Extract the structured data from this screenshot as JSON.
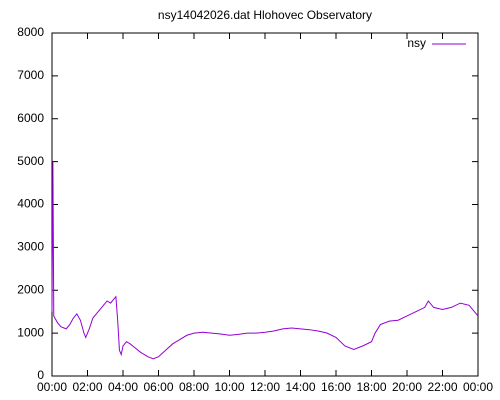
{
  "chart_data": {
    "type": "line",
    "title": "nsy14042026.dat Hlohovec Observatory",
    "x": [
      0.0,
      0.05,
      0.1,
      0.3,
      0.5,
      0.8,
      1.0,
      1.2,
      1.4,
      1.6,
      1.8,
      1.9,
      2.1,
      2.3,
      2.6,
      2.9,
      3.1,
      3.3,
      3.5,
      3.6,
      3.7,
      3.8,
      3.9,
      4.0,
      4.2,
      4.4,
      4.7,
      5.0,
      5.4,
      5.7,
      6.0,
      6.4,
      6.8,
      7.2,
      7.6,
      8.0,
      8.5,
      9.0,
      9.5,
      10.0,
      10.5,
      11.0,
      11.5,
      12.0,
      12.5,
      13.0,
      13.5,
      14.0,
      14.5,
      15.0,
      15.5,
      16.0,
      16.5,
      17.0,
      17.5,
      18.0,
      18.2,
      18.5,
      19.0,
      19.5,
      20.0,
      20.5,
      21.0,
      21.2,
      21.5,
      22.0,
      22.5,
      23.0,
      23.5,
      23.8,
      24.0
    ],
    "series": [
      {
        "name": "nsy",
        "color": "#9400d3",
        "values": [
          1500,
          5000,
          1400,
          1250,
          1150,
          1100,
          1200,
          1350,
          1450,
          1300,
          1000,
          900,
          1100,
          1350,
          1500,
          1650,
          1750,
          1700,
          1800,
          1850,
          1300,
          600,
          500,
          700,
          800,
          750,
          650,
          550,
          450,
          400,
          450,
          600,
          750,
          850,
          950,
          1000,
          1020,
          1000,
          980,
          950,
          970,
          1000,
          1000,
          1020,
          1050,
          1100,
          1120,
          1100,
          1080,
          1050,
          1000,
          900,
          700,
          620,
          700,
          800,
          1000,
          1200,
          1280,
          1300,
          1400,
          1500,
          1600,
          1750,
          1600,
          1550,
          1600,
          1700,
          1650,
          1500,
          1400
        ]
      }
    ],
    "xlim": [
      0,
      24
    ],
    "xticks": [
      {
        "value": 0,
        "label": "00:00"
      },
      {
        "value": 2,
        "label": "02:00"
      },
      {
        "value": 4,
        "label": "04:00"
      },
      {
        "value": 6,
        "label": "06:00"
      },
      {
        "value": 8,
        "label": "08:00"
      },
      {
        "value": 10,
        "label": "10:00"
      },
      {
        "value": 12,
        "label": "12:00"
      },
      {
        "value": 14,
        "label": "14:00"
      },
      {
        "value": 16,
        "label": "16:00"
      },
      {
        "value": 18,
        "label": "18:00"
      },
      {
        "value": 20,
        "label": "20:00"
      },
      {
        "value": 22,
        "label": "22:00"
      },
      {
        "value": 24,
        "label": "00:00"
      }
    ],
    "ylim": [
      0,
      8000
    ],
    "yticks": [
      0,
      1000,
      2000,
      3000,
      4000,
      5000,
      6000,
      7000,
      8000
    ],
    "legend": "top-right"
  }
}
